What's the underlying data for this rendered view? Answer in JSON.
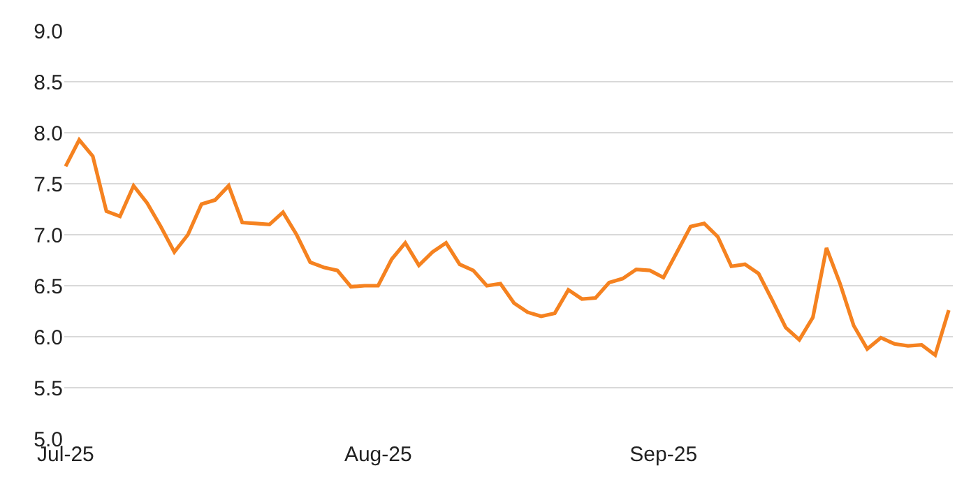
{
  "chart_data": {
    "type": "line",
    "categories": [
      "Jul-25",
      null,
      null,
      null,
      null,
      null,
      null,
      null,
      null,
      null,
      null,
      null,
      null,
      null,
      null,
      null,
      null,
      null,
      null,
      null,
      null,
      null,
      null,
      "Aug-25",
      null,
      null,
      null,
      null,
      null,
      null,
      null,
      null,
      null,
      null,
      null,
      null,
      null,
      null,
      null,
      null,
      null,
      null,
      null,
      null,
      "Sep-25",
      null,
      null,
      null,
      null,
      null,
      null,
      null,
      null,
      null,
      null,
      null,
      null,
      null,
      null,
      null,
      null,
      null,
      null,
      null,
      null,
      null
    ],
    "series": [
      {
        "color": "#f58220",
        "values": [
          7.67,
          7.93,
          7.77,
          7.23,
          7.18,
          7.48,
          7.31,
          7.08,
          6.83,
          7.0,
          7.3,
          7.34,
          7.48,
          7.12,
          7.11,
          7.1,
          7.22,
          7.0,
          6.73,
          6.68,
          6.65,
          6.49,
          6.5,
          6.5,
          6.76,
          6.92,
          6.7,
          6.83,
          6.92,
          6.71,
          6.65,
          6.5,
          6.52,
          6.33,
          6.24,
          6.2,
          6.23,
          6.46,
          6.37,
          6.38,
          6.53,
          6.57,
          6.66,
          6.65,
          6.58,
          6.83,
          7.08,
          7.11,
          6.98,
          6.69,
          6.71,
          6.62,
          6.36,
          6.09,
          5.97,
          6.19,
          6.87,
          6.52,
          6.11,
          5.88,
          5.99,
          5.93,
          5.91,
          5.92,
          5.82,
          6.26
        ]
      }
    ],
    "ylim": [
      5.0,
      9.0
    ],
    "yticks": [
      {
        "value": 5.0,
        "label": "5.0"
      },
      {
        "value": 5.5,
        "label": "5.5"
      },
      {
        "value": 6.0,
        "label": "6.0"
      },
      {
        "value": 6.5,
        "label": "6.5"
      },
      {
        "value": 7.0,
        "label": "7.0"
      },
      {
        "value": 7.5,
        "label": "7.5"
      },
      {
        "value": 8.0,
        "label": "8.0"
      },
      {
        "value": 8.5,
        "label": "8.5"
      },
      {
        "value": 9.0,
        "label": "9.0"
      }
    ],
    "grid": "y",
    "line_style": "solid",
    "marker": "none"
  }
}
